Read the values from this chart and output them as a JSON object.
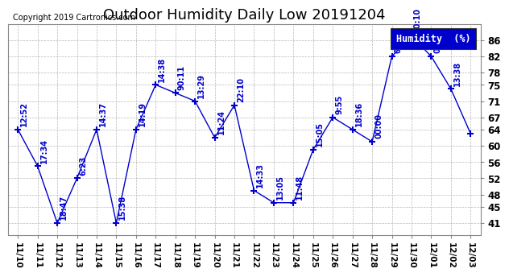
{
  "title": "Outdoor Humidity Daily Low 20191204",
  "copyright": "Copyright 2019 Cartronics.com",
  "legend_label": "Humidity  (%)",
  "dates": [
    "11/10",
    "11/11",
    "11/12",
    "11/13",
    "11/14",
    "11/15",
    "11/16",
    "11/17",
    "11/18",
    "11/19",
    "11/20",
    "11/21",
    "11/22",
    "11/23",
    "11/24",
    "11/25",
    "11/26",
    "11/27",
    "11/28",
    "11/29",
    "11/30",
    "12/01",
    "12/02",
    "12/03"
  ],
  "values": [
    64,
    55,
    41,
    52,
    64,
    41,
    64,
    75,
    73,
    71,
    62,
    70,
    49,
    46,
    46,
    59,
    67,
    64,
    61,
    82,
    87,
    82,
    74,
    63
  ],
  "annotations": [
    "12:52",
    "17:34",
    "18:47",
    "6:23",
    "14:37",
    "15:38",
    "14:19",
    "14:38",
    "90:11",
    "13:29",
    "11:24",
    "22:10",
    "14:33",
    "13:05",
    "11:48",
    "15:05",
    "9:55",
    "18:36",
    "00:00",
    "00:00",
    "00:10",
    "05:38",
    "13:38"
  ],
  "annot_indices": [
    0,
    1,
    2,
    3,
    4,
    5,
    6,
    7,
    8,
    9,
    10,
    11,
    12,
    13,
    14,
    15,
    16,
    17,
    18,
    19,
    20,
    21,
    22
  ],
  "line_color": "#0000cc",
  "marker_color": "#000080",
  "grid_color": "#b0b0b0",
  "background_color": "#ffffff",
  "ylim": [
    38,
    90
  ],
  "yticks": [
    41,
    45,
    48,
    52,
    56,
    60,
    64,
    67,
    71,
    75,
    78,
    82,
    86
  ],
  "title_fontsize": 13,
  "annot_fontsize": 7,
  "legend_bg": "#0000cc",
  "legend_fg": "#ffffff",
  "legend_fontsize": 8.5
}
